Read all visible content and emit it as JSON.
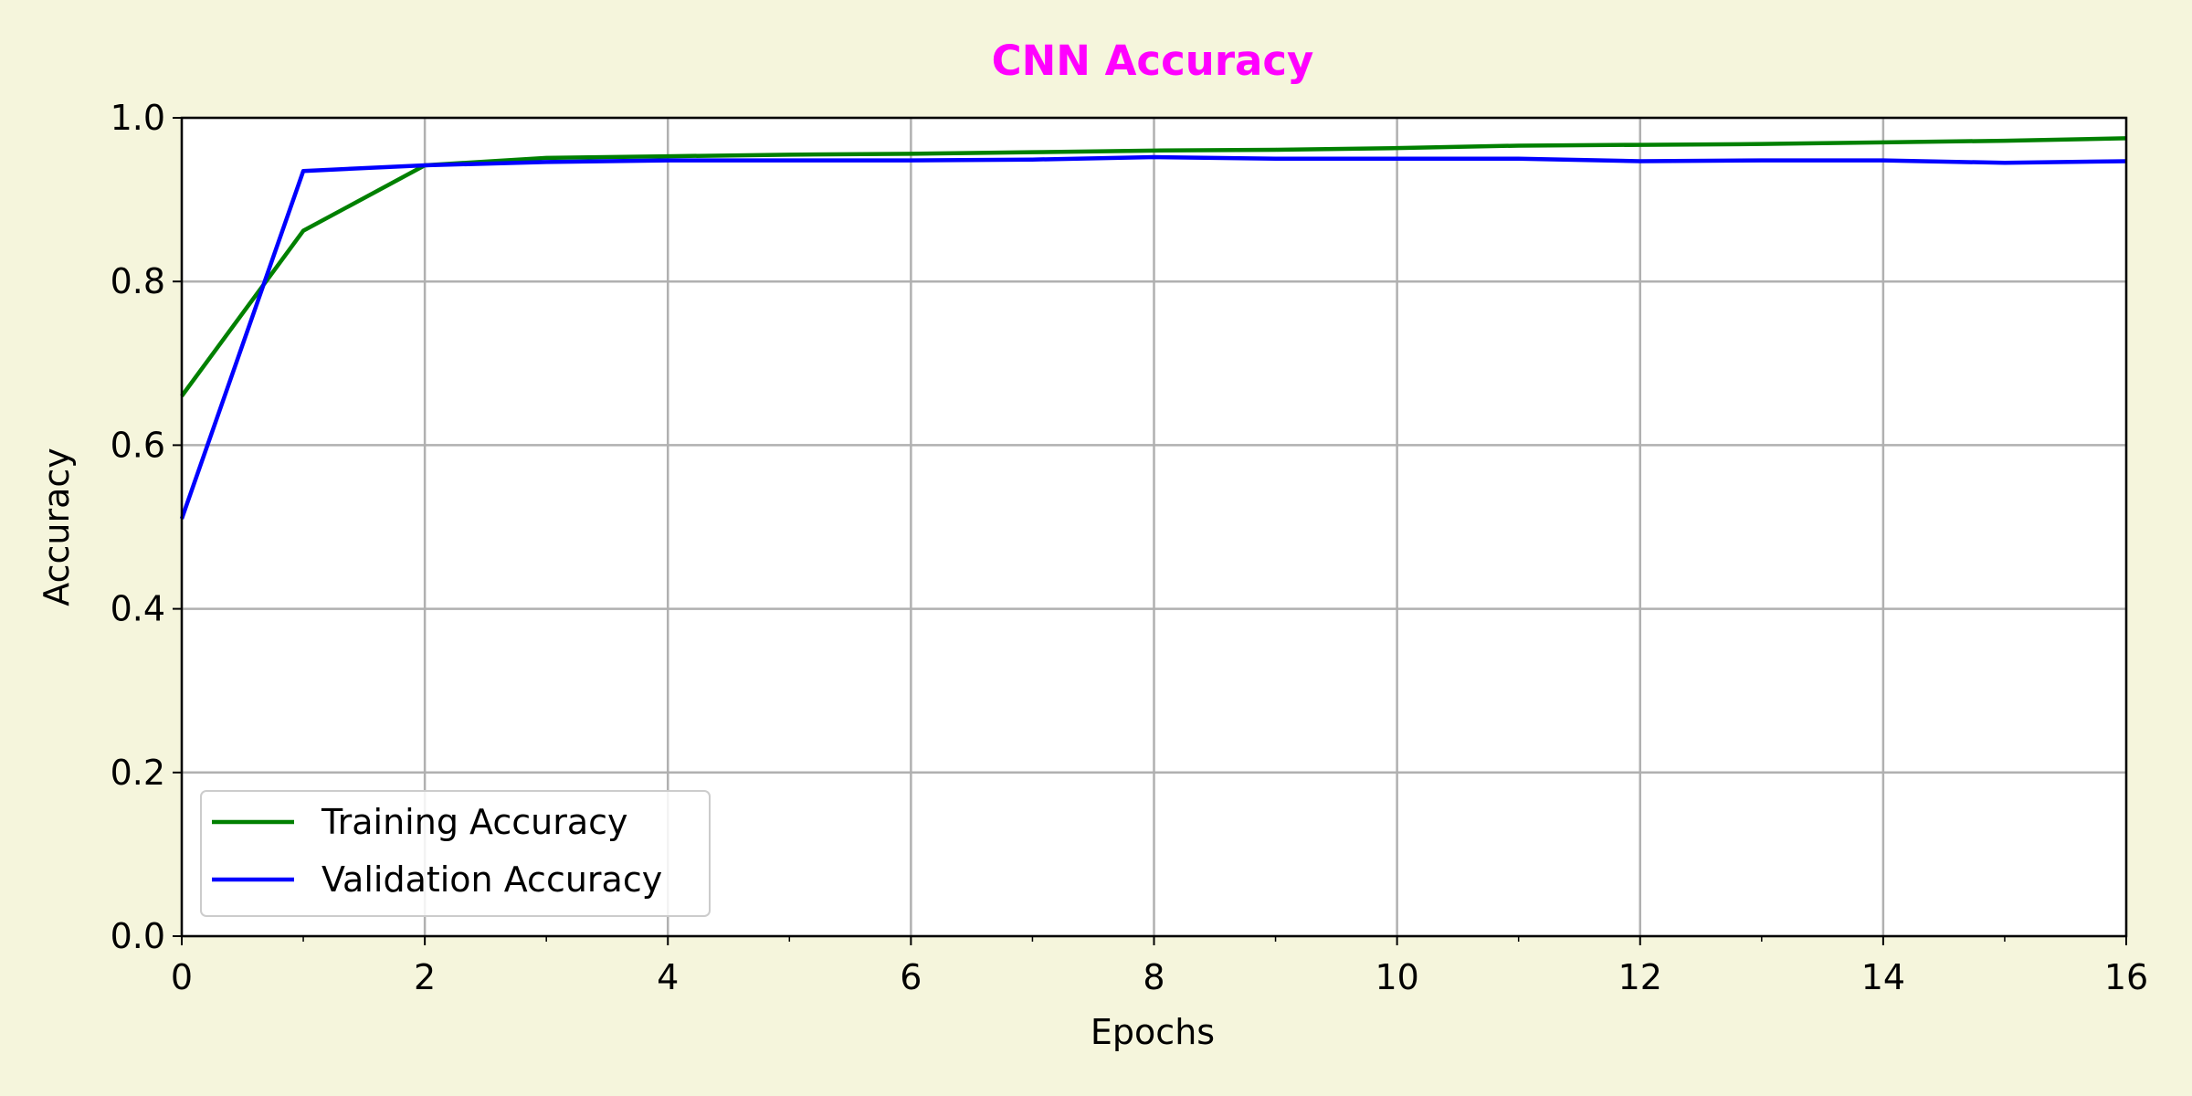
{
  "chart_data": {
    "type": "line",
    "title": "CNN Accuracy",
    "xlabel": "Epochs",
    "ylabel": "Accuracy",
    "xlim": [
      0,
      16
    ],
    "ylim": [
      0.0,
      1.0
    ],
    "xticks": [
      0,
      2,
      4,
      6,
      8,
      10,
      12,
      14,
      16
    ],
    "xtick_labels": [
      "0",
      "2",
      "4",
      "6",
      "8",
      "10",
      "12",
      "14",
      "16"
    ],
    "yticks": [
      0.0,
      0.2,
      0.4,
      0.6,
      0.8,
      1.0
    ],
    "ytick_labels": [
      "0.0",
      "0.2",
      "0.4",
      "0.6",
      "0.8",
      "1.0"
    ],
    "grid": true,
    "legend_position": "lower-left",
    "x": [
      0,
      1,
      2,
      3,
      4,
      5,
      6,
      7,
      8,
      9,
      10,
      11,
      12,
      13,
      14,
      15,
      16
    ],
    "series": [
      {
        "name": "Training Accuracy",
        "color": "#008000",
        "values": [
          0.66,
          0.862,
          0.942,
          0.951,
          0.953,
          0.955,
          0.956,
          0.958,
          0.96,
          0.961,
          0.963,
          0.966,
          0.967,
          0.968,
          0.97,
          0.972,
          0.975
        ]
      },
      {
        "name": "Validation Accuracy",
        "color": "#0000ff",
        "values": [
          0.51,
          0.935,
          0.942,
          0.946,
          0.948,
          0.948,
          0.948,
          0.949,
          0.952,
          0.95,
          0.95,
          0.95,
          0.947,
          0.948,
          0.948,
          0.945,
          0.947
        ]
      }
    ],
    "colors": {
      "background": "#f5f5dc",
      "plot_background": "#ffffff",
      "title": "#ff00ff",
      "grid": "#b0b0b0"
    }
  }
}
